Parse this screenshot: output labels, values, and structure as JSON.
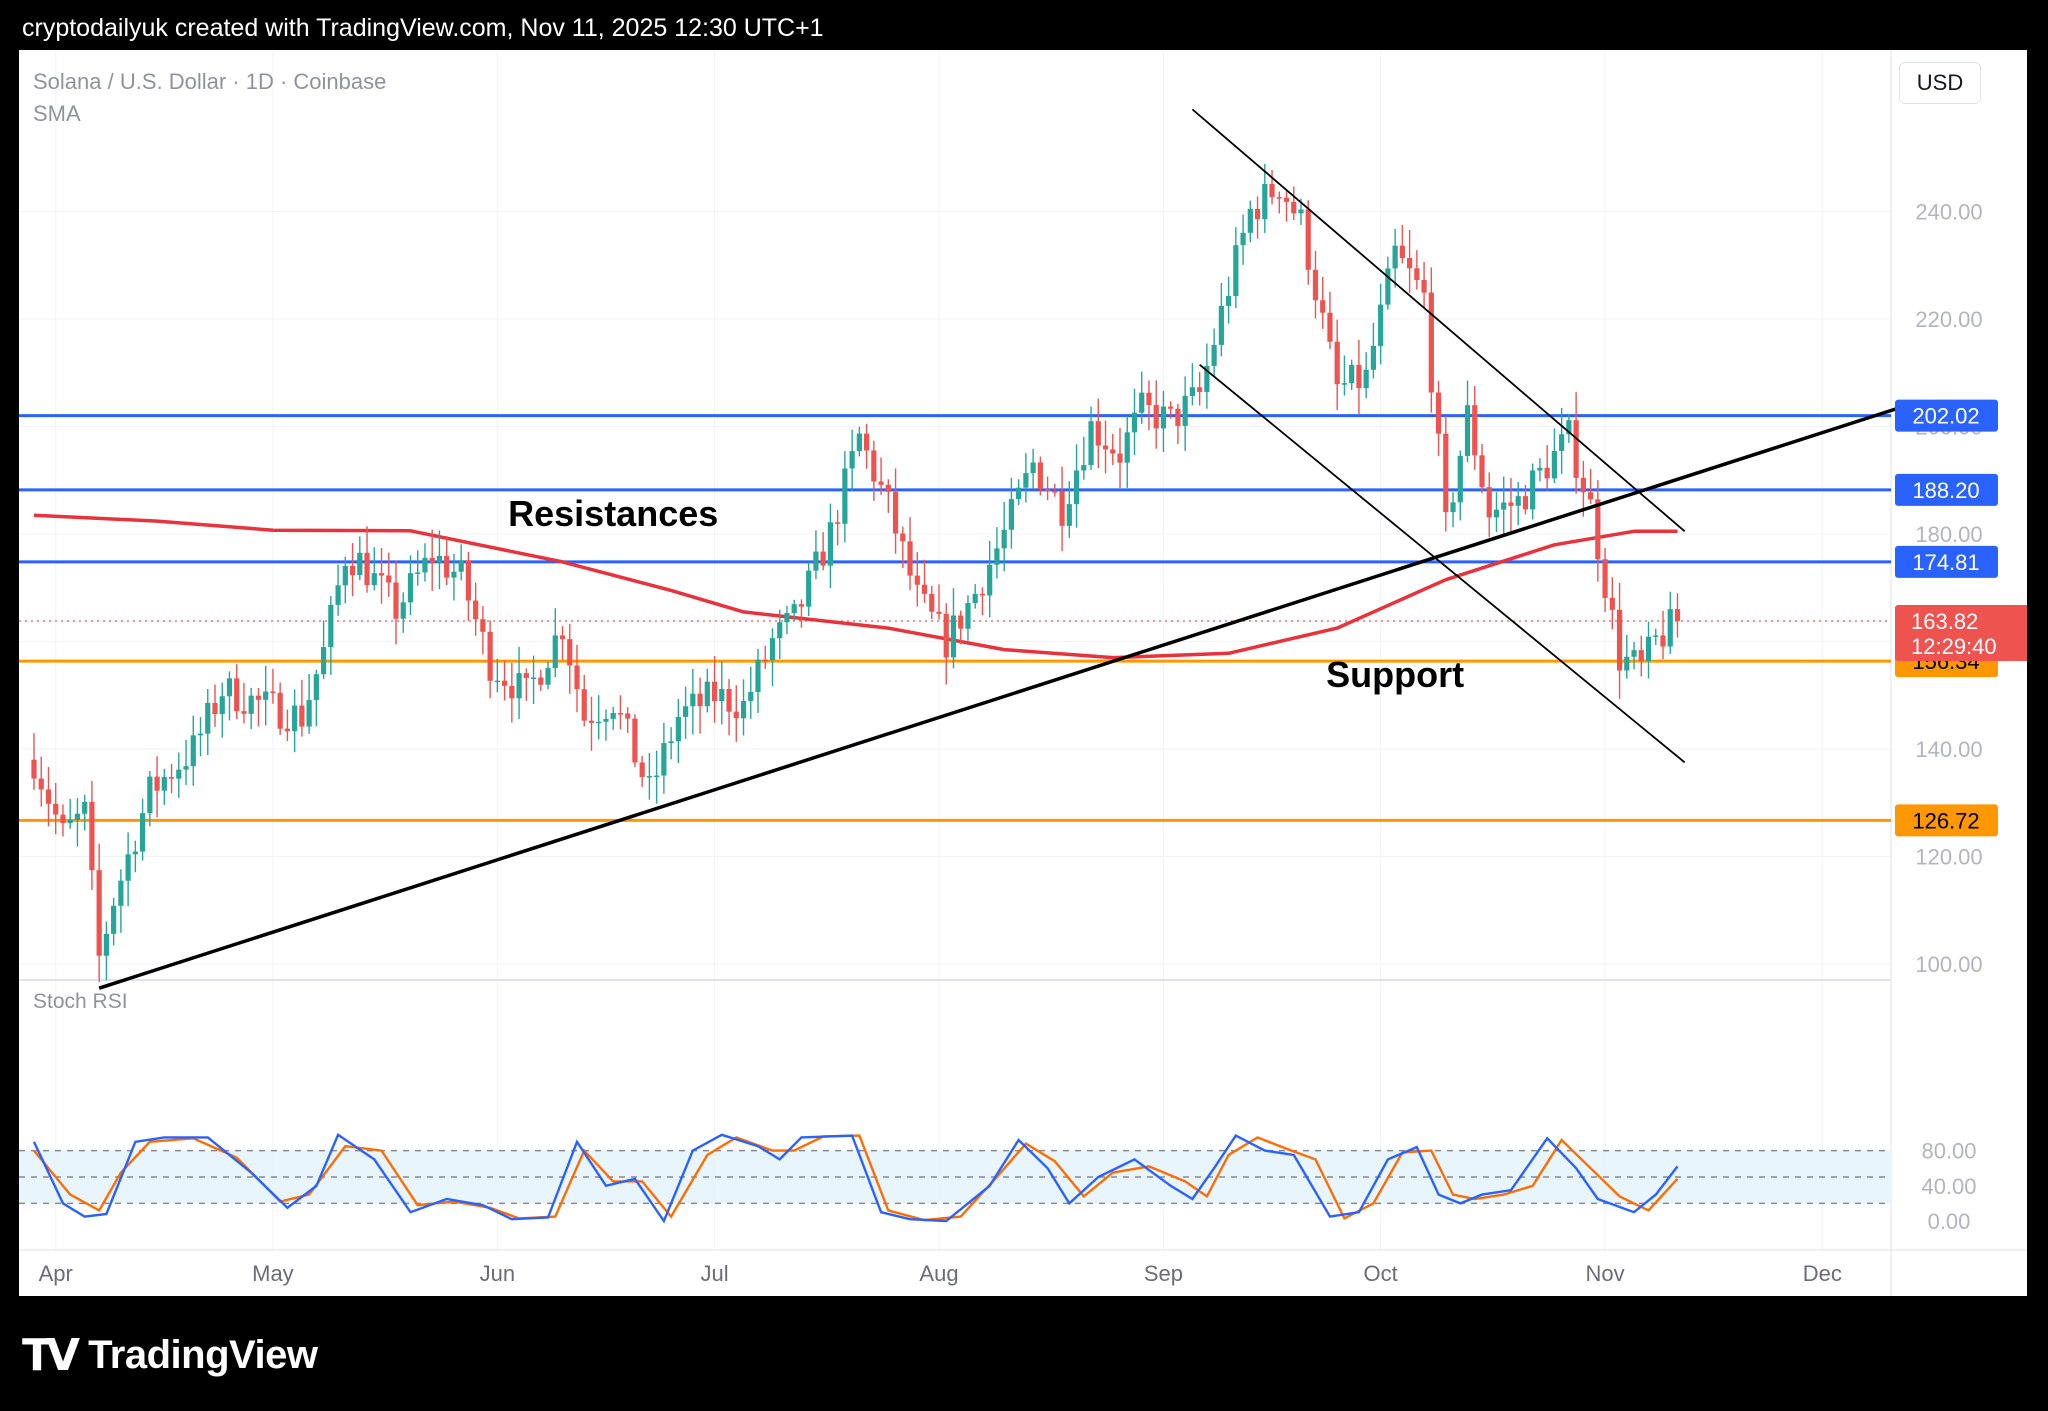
{
  "header": {
    "text": "cryptodailyuk created with TradingView.com, Nov 11, 2025 12:30 UTC+1"
  },
  "footer": {
    "logo_text": "TradingView"
  },
  "toolbar": {
    "currency": "USD"
  },
  "symbol": {
    "title": "Solana / U.S. Dollar · 1D · Coinbase",
    "indicator": "SMA"
  },
  "rsi_panel": {
    "title": "Stoch RSI"
  },
  "colors": {
    "up": "#26a69a",
    "down": "#ef5350",
    "sma": "#e8323c",
    "resistance": "#2962ff",
    "support": "#ff9800",
    "trend": "#000000",
    "rsi_k": "#2962ff",
    "rsi_d": "#ff6d00",
    "rsi_band": "#e3f2fd"
  },
  "chart_data": {
    "type": "candlestick",
    "price_axis": {
      "min": 85,
      "max": 260,
      "ticks": [
        100,
        120,
        140,
        160,
        180,
        200,
        220,
        240
      ]
    },
    "time_axis": {
      "labels": [
        "Apr",
        "May",
        "Jun",
        "Jul",
        "Aug",
        "Sep",
        "Oct",
        "Nov",
        "Dec"
      ],
      "label_days": [
        "2025-04-01",
        "2025-05-01",
        "2025-06-01",
        "2025-07-01",
        "2025-08-01",
        "2025-09-01",
        "2025-10-01",
        "2025-11-01",
        "2025-12-01"
      ]
    },
    "start_date": "2025-03-29",
    "end_date": "2025-11-11",
    "price_path": [
      [
        "2025-03-29",
        138
      ],
      [
        "2025-04-02",
        124
      ],
      [
        "2025-04-05",
        128
      ],
      [
        "2025-04-07",
        101
      ],
      [
        "2025-04-09",
        112
      ],
      [
        "2025-04-14",
        132
      ],
      [
        "2025-04-20",
        140
      ],
      [
        "2025-04-24",
        151
      ],
      [
        "2025-04-30",
        148
      ],
      [
        "2025-05-05",
        146
      ],
      [
        "2025-05-08",
        158
      ],
      [
        "2025-05-11",
        176
      ],
      [
        "2025-05-13",
        175
      ],
      [
        "2025-05-18",
        166
      ],
      [
        "2025-05-23",
        176
      ],
      [
        "2025-05-27",
        172
      ],
      [
        "2025-05-31",
        156
      ],
      [
        "2025-06-05",
        150
      ],
      [
        "2025-06-10",
        163
      ],
      [
        "2025-06-13",
        146
      ],
      [
        "2025-06-17",
        149
      ],
      [
        "2025-06-22",
        132
      ],
      [
        "2025-06-26",
        146
      ],
      [
        "2025-07-01",
        150
      ],
      [
        "2025-07-05",
        148
      ],
      [
        "2025-07-09",
        160
      ],
      [
        "2025-07-12",
        164
      ],
      [
        "2025-07-17",
        180
      ],
      [
        "2025-07-21",
        198
      ],
      [
        "2025-07-25",
        185
      ],
      [
        "2025-07-29",
        168
      ],
      [
        "2025-08-02",
        160
      ],
      [
        "2025-08-06",
        169
      ],
      [
        "2025-08-10",
        180
      ],
      [
        "2025-08-14",
        193
      ],
      [
        "2025-08-18",
        185
      ],
      [
        "2025-08-22",
        200
      ],
      [
        "2025-08-26",
        195
      ],
      [
        "2025-08-29",
        203
      ],
      [
        "2025-09-02",
        201
      ],
      [
        "2025-09-06",
        206
      ],
      [
        "2025-09-10",
        226
      ],
      [
        "2025-09-13",
        240
      ],
      [
        "2025-09-17",
        245
      ],
      [
        "2025-09-20",
        238
      ],
      [
        "2025-09-25",
        207
      ],
      [
        "2025-09-29",
        209
      ],
      [
        "2025-10-03",
        232
      ],
      [
        "2025-10-07",
        224
      ],
      [
        "2025-10-10",
        181
      ],
      [
        "2025-10-13",
        202
      ],
      [
        "2025-10-16",
        184
      ],
      [
        "2025-10-20",
        186
      ],
      [
        "2025-10-27",
        198
      ],
      [
        "2025-10-30",
        185
      ],
      [
        "2025-11-03",
        157
      ],
      [
        "2025-11-06",
        155
      ],
      [
        "2025-11-08",
        160
      ],
      [
        "2025-11-11",
        163.82
      ]
    ],
    "sma_path": [
      [
        "2025-03-29",
        183.5
      ],
      [
        "2025-04-15",
        182.4
      ],
      [
        "2025-05-01",
        180.7
      ],
      [
        "2025-05-20",
        180.6
      ],
      [
        "2025-06-10",
        174.8
      ],
      [
        "2025-06-25",
        169.5
      ],
      [
        "2025-07-05",
        165.5
      ],
      [
        "2025-07-25",
        162.5
      ],
      [
        "2025-08-10",
        158.5
      ],
      [
        "2025-08-25",
        157
      ],
      [
        "2025-09-10",
        157.8
      ],
      [
        "2025-09-25",
        162.5
      ],
      [
        "2025-10-10",
        171.5
      ],
      [
        "2025-10-25",
        178
      ],
      [
        "2025-11-05",
        180.5
      ],
      [
        "2025-11-11",
        180.5
      ]
    ],
    "current_price": {
      "value": 163.82,
      "label": "163.82",
      "countdown": "12:29:40"
    },
    "levels": [
      {
        "value": 202.02,
        "label": "202.02",
        "kind": "resistance"
      },
      {
        "value": 188.2,
        "label": "188.20",
        "kind": "resistance"
      },
      {
        "value": 174.81,
        "label": "174.81",
        "kind": "resistance"
      },
      {
        "value": 156.34,
        "label": "156.34",
        "kind": "support"
      },
      {
        "value": 126.72,
        "label": "126.72",
        "kind": "support"
      }
    ],
    "trendlines": [
      {
        "from": [
          "2025-04-07",
          95.5
        ],
        "to": [
          "2025-12-14",
          204.5
        ]
      },
      {
        "from": [
          "2025-09-05",
          259
        ],
        "to": [
          "2025-11-12",
          180.5
        ]
      },
      {
        "from": [
          "2025-09-06",
          211.5
        ],
        "to": [
          "2025-11-12",
          137.5
        ]
      }
    ],
    "annotations": [
      {
        "text": "Resistances",
        "date": "2025-06-17",
        "price": 181.5
      },
      {
        "text": "Support",
        "date": "2025-10-03",
        "price": 151.5
      }
    ],
    "stoch_rsi": {
      "axis": {
        "min": 0,
        "max": 100,
        "ticks": [
          0,
          40,
          80
        ],
        "tick_labels": [
          "0.00",
          "40.00",
          "80.00"
        ],
        "band": [
          20,
          80
        ],
        "mid": 50
      },
      "k_path": [
        [
          "2025-03-29",
          90
        ],
        [
          "2025-04-02",
          20
        ],
        [
          "2025-04-05",
          5
        ],
        [
          "2025-04-08",
          8
        ],
        [
          "2025-04-12",
          90
        ],
        [
          "2025-04-16",
          95
        ],
        [
          "2025-04-22",
          95
        ],
        [
          "2025-04-28",
          55
        ],
        [
          "2025-05-03",
          15
        ],
        [
          "2025-05-07",
          40
        ],
        [
          "2025-05-10",
          98
        ],
        [
          "2025-05-15",
          70
        ],
        [
          "2025-05-20",
          10
        ],
        [
          "2025-05-25",
          25
        ],
        [
          "2025-05-30",
          18
        ],
        [
          "2025-06-03",
          2
        ],
        [
          "2025-06-08",
          4
        ],
        [
          "2025-06-12",
          90
        ],
        [
          "2025-06-16",
          40
        ],
        [
          "2025-06-20",
          48
        ],
        [
          "2025-06-24",
          0
        ],
        [
          "2025-06-28",
          80
        ],
        [
          "2025-07-02",
          98
        ],
        [
          "2025-07-07",
          85
        ],
        [
          "2025-07-10",
          70
        ],
        [
          "2025-07-13",
          95
        ],
        [
          "2025-07-20",
          97
        ],
        [
          "2025-07-24",
          10
        ],
        [
          "2025-07-28",
          2
        ],
        [
          "2025-08-02",
          0
        ],
        [
          "2025-08-08",
          40
        ],
        [
          "2025-08-12",
          92
        ],
        [
          "2025-08-16",
          60
        ],
        [
          "2025-08-19",
          20
        ],
        [
          "2025-08-23",
          50
        ],
        [
          "2025-08-28",
          70
        ],
        [
          "2025-09-02",
          40
        ],
        [
          "2025-09-05",
          25
        ],
        [
          "2025-09-08",
          60
        ],
        [
          "2025-09-11",
          97
        ],
        [
          "2025-09-15",
          80
        ],
        [
          "2025-09-19",
          75
        ],
        [
          "2025-09-24",
          5
        ],
        [
          "2025-09-28",
          10
        ],
        [
          "2025-10-02",
          70
        ],
        [
          "2025-10-06",
          84
        ],
        [
          "2025-10-09",
          30
        ],
        [
          "2025-10-12",
          20
        ],
        [
          "2025-10-15",
          30
        ],
        [
          "2025-10-19",
          35
        ],
        [
          "2025-10-24",
          94
        ],
        [
          "2025-10-28",
          60
        ],
        [
          "2025-10-31",
          25
        ],
        [
          "2025-11-05",
          10
        ],
        [
          "2025-11-08",
          30
        ],
        [
          "2025-11-11",
          62
        ]
      ],
      "d_path": [
        [
          "2025-03-29",
          80
        ],
        [
          "2025-04-03",
          30
        ],
        [
          "2025-04-07",
          12
        ],
        [
          "2025-04-10",
          55
        ],
        [
          "2025-04-14",
          90
        ],
        [
          "2025-04-20",
          94
        ],
        [
          "2025-04-26",
          72
        ],
        [
          "2025-05-02",
          22
        ],
        [
          "2025-05-06",
          30
        ],
        [
          "2025-05-11",
          85
        ],
        [
          "2025-05-16",
          80
        ],
        [
          "2025-05-21",
          18
        ],
        [
          "2025-05-26",
          22
        ],
        [
          "2025-05-31",
          15
        ],
        [
          "2025-06-04",
          3
        ],
        [
          "2025-06-09",
          5
        ],
        [
          "2025-06-13",
          80
        ],
        [
          "2025-06-17",
          45
        ],
        [
          "2025-06-21",
          45
        ],
        [
          "2025-06-25",
          5
        ],
        [
          "2025-06-30",
          75
        ],
        [
          "2025-07-04",
          95
        ],
        [
          "2025-07-09",
          80
        ],
        [
          "2025-07-12",
          80
        ],
        [
          "2025-07-16",
          96
        ],
        [
          "2025-07-21",
          97
        ],
        [
          "2025-07-25",
          12
        ],
        [
          "2025-07-30",
          1
        ],
        [
          "2025-08-04",
          5
        ],
        [
          "2025-08-09",
          50
        ],
        [
          "2025-08-13",
          88
        ],
        [
          "2025-08-17",
          68
        ],
        [
          "2025-08-21",
          28
        ],
        [
          "2025-08-25",
          55
        ],
        [
          "2025-08-30",
          62
        ],
        [
          "2025-09-04",
          45
        ],
        [
          "2025-09-07",
          28
        ],
        [
          "2025-09-10",
          75
        ],
        [
          "2025-09-14",
          95
        ],
        [
          "2025-09-18",
          82
        ],
        [
          "2025-09-22",
          70
        ],
        [
          "2025-09-26",
          3
        ],
        [
          "2025-09-30",
          20
        ],
        [
          "2025-10-04",
          78
        ],
        [
          "2025-10-08",
          80
        ],
        [
          "2025-10-11",
          30
        ],
        [
          "2025-10-14",
          25
        ],
        [
          "2025-10-18",
          30
        ],
        [
          "2025-10-22",
          40
        ],
        [
          "2025-10-26",
          92
        ],
        [
          "2025-10-30",
          60
        ],
        [
          "2025-11-03",
          28
        ],
        [
          "2025-11-07",
          12
        ],
        [
          "2025-11-11",
          48
        ]
      ]
    }
  }
}
